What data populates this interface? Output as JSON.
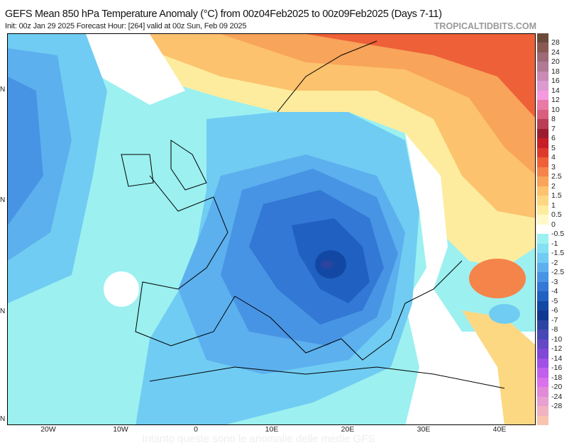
{
  "header": {
    "title": "GEFS Mean 850 hPa Temperature Anomaly (°C) from 00z04Feb2025 to 00z09Feb2025 (Days 7-11)",
    "subtitle": "Init: 00z Jan 29 2025   Forecast Hour: [264]   valid at 00z Sun, Feb 09 2025",
    "brand": "TROPICALTIDBITS.COM"
  },
  "x_axis": [
    "20W",
    "10W",
    "0",
    "10E",
    "20E",
    "30E",
    "40E"
  ],
  "y_axis": [
    "N",
    "N",
    "N",
    "N"
  ],
  "colorbar": {
    "labels": [
      "28",
      "24",
      "20",
      "18",
      "16",
      "14",
      "12",
      "10",
      "8",
      "7",
      "6",
      "5",
      "4",
      "3",
      "2.5",
      "2",
      "1.5",
      "1",
      "0.5",
      "0",
      "-0.5",
      "-1",
      "-1.5",
      "-2",
      "-2.5",
      "-3",
      "-4",
      "-5",
      "-6",
      "-7",
      "-8",
      "-10",
      "-12",
      "-14",
      "-16",
      "-18",
      "-20",
      "-24",
      "-28"
    ],
    "colors": [
      "#6b4a3a",
      "#8a5a52",
      "#9c6a78",
      "#b07a95",
      "#c98ab5",
      "#dd9ad0",
      "#f59ae0",
      "#e87aa5",
      "#d8607e",
      "#b83e55",
      "#9a1e30",
      "#c81e28",
      "#de3a2c",
      "#ee6038",
      "#f5844a",
      "#f8a45a",
      "#fcc26e",
      "#fdd882",
      "#fdec9e",
      "#fff8c8",
      "#ffffff",
      "#9cf0f0",
      "#84e0f2",
      "#70ccf2",
      "#5cb0ee",
      "#4894e4",
      "#3278d4",
      "#2060c0",
      "#1248a4",
      "#103890",
      "#2a44a0",
      "#4848b4",
      "#6448c4",
      "#8048d4",
      "#a050e4",
      "#c060ec",
      "#da70ec",
      "#e08ad8",
      "#e8a0d0",
      "#f0b4c0",
      "#f8c4b0"
    ]
  },
  "ghost_text": "Intanto queste sono le anomalie delle medie GFS"
}
